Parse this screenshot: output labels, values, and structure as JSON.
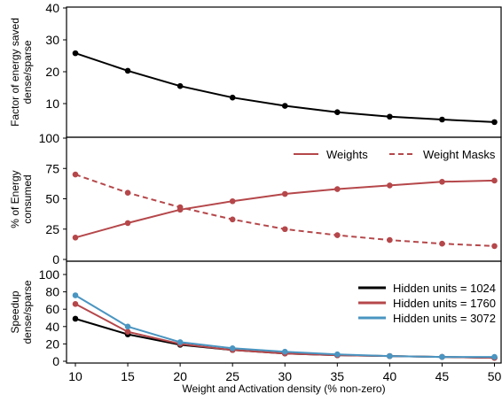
{
  "colors": {
    "black": "#000000",
    "red": "#b5474a",
    "blue": "#4a95c1"
  },
  "chart_data": [
    {
      "type": "line",
      "xlabel": "",
      "ylabel": "Factor of energy saved dense/sparse",
      "ylabel_lines": [
        "Factor of energy saved",
        "dense/sparse"
      ],
      "x": [
        10,
        15,
        20,
        25,
        30,
        35,
        40,
        45,
        50
      ],
      "xlim": [
        8,
        51
      ],
      "ylim": [
        0,
        40
      ],
      "yticks": [
        10,
        20,
        30,
        40
      ],
      "xticks_shown": false,
      "series": [
        {
          "values": [
            25.8,
            20.3,
            15.5,
            11.9,
            9.3,
            7.3,
            5.9,
            5.0,
            4.2
          ],
          "color": "#000000",
          "style": "solid"
        }
      ]
    },
    {
      "type": "line",
      "xlabel": "",
      "ylabel": "% of Energy consumed",
      "ylabel_lines": [
        "% of Energy",
        "consumed"
      ],
      "x": [
        10,
        15,
        20,
        25,
        30,
        35,
        40,
        45,
        50
      ],
      "xlim": [
        8,
        51
      ],
      "ylim": [
        0,
        100
      ],
      "yticks": [
        0,
        25,
        50,
        75,
        100
      ],
      "xticks_shown": false,
      "legend": "top-right",
      "series": [
        {
          "name": "Weights",
          "values": [
            18,
            30,
            41,
            48,
            54,
            58,
            61,
            64,
            65
          ],
          "color": "#b5474a",
          "style": "solid"
        },
        {
          "name": "Weight Masks",
          "values": [
            70,
            55,
            43,
            33,
            25,
            20,
            16,
            13,
            11
          ],
          "color": "#b5474a",
          "style": "dashed"
        }
      ]
    },
    {
      "type": "line",
      "xlabel": "Weight and Activation density (% non-zero)",
      "ylabel": "Speedup dense/sparse",
      "ylabel_lines": [
        "Speedup",
        "dense/sparse"
      ],
      "x": [
        10,
        15,
        20,
        25,
        30,
        35,
        40,
        45,
        50
      ],
      "xlim": [
        8,
        51
      ],
      "ylim": [
        0,
        100
      ],
      "yticks": [
        0,
        20,
        40,
        60,
        80,
        100
      ],
      "xticks": [
        10,
        15,
        20,
        25,
        30,
        35,
        40,
        45,
        50
      ],
      "xticks_shown": true,
      "legend": "top-right",
      "series": [
        {
          "name": "Hidden units = 1024",
          "values": [
            49,
            31,
            19,
            13,
            9,
            7,
            6,
            5,
            4
          ],
          "color": "#000000",
          "style": "solid"
        },
        {
          "name": "Hidden units = 1760",
          "values": [
            66,
            34,
            20,
            13,
            9,
            7,
            6,
            5,
            4
          ],
          "color": "#b5474a",
          "style": "solid"
        },
        {
          "name": "Hidden units = 3072",
          "values": [
            76,
            40,
            22,
            15,
            11,
            8,
            6,
            5,
            5
          ],
          "color": "#4a95c1",
          "style": "solid"
        }
      ]
    }
  ]
}
